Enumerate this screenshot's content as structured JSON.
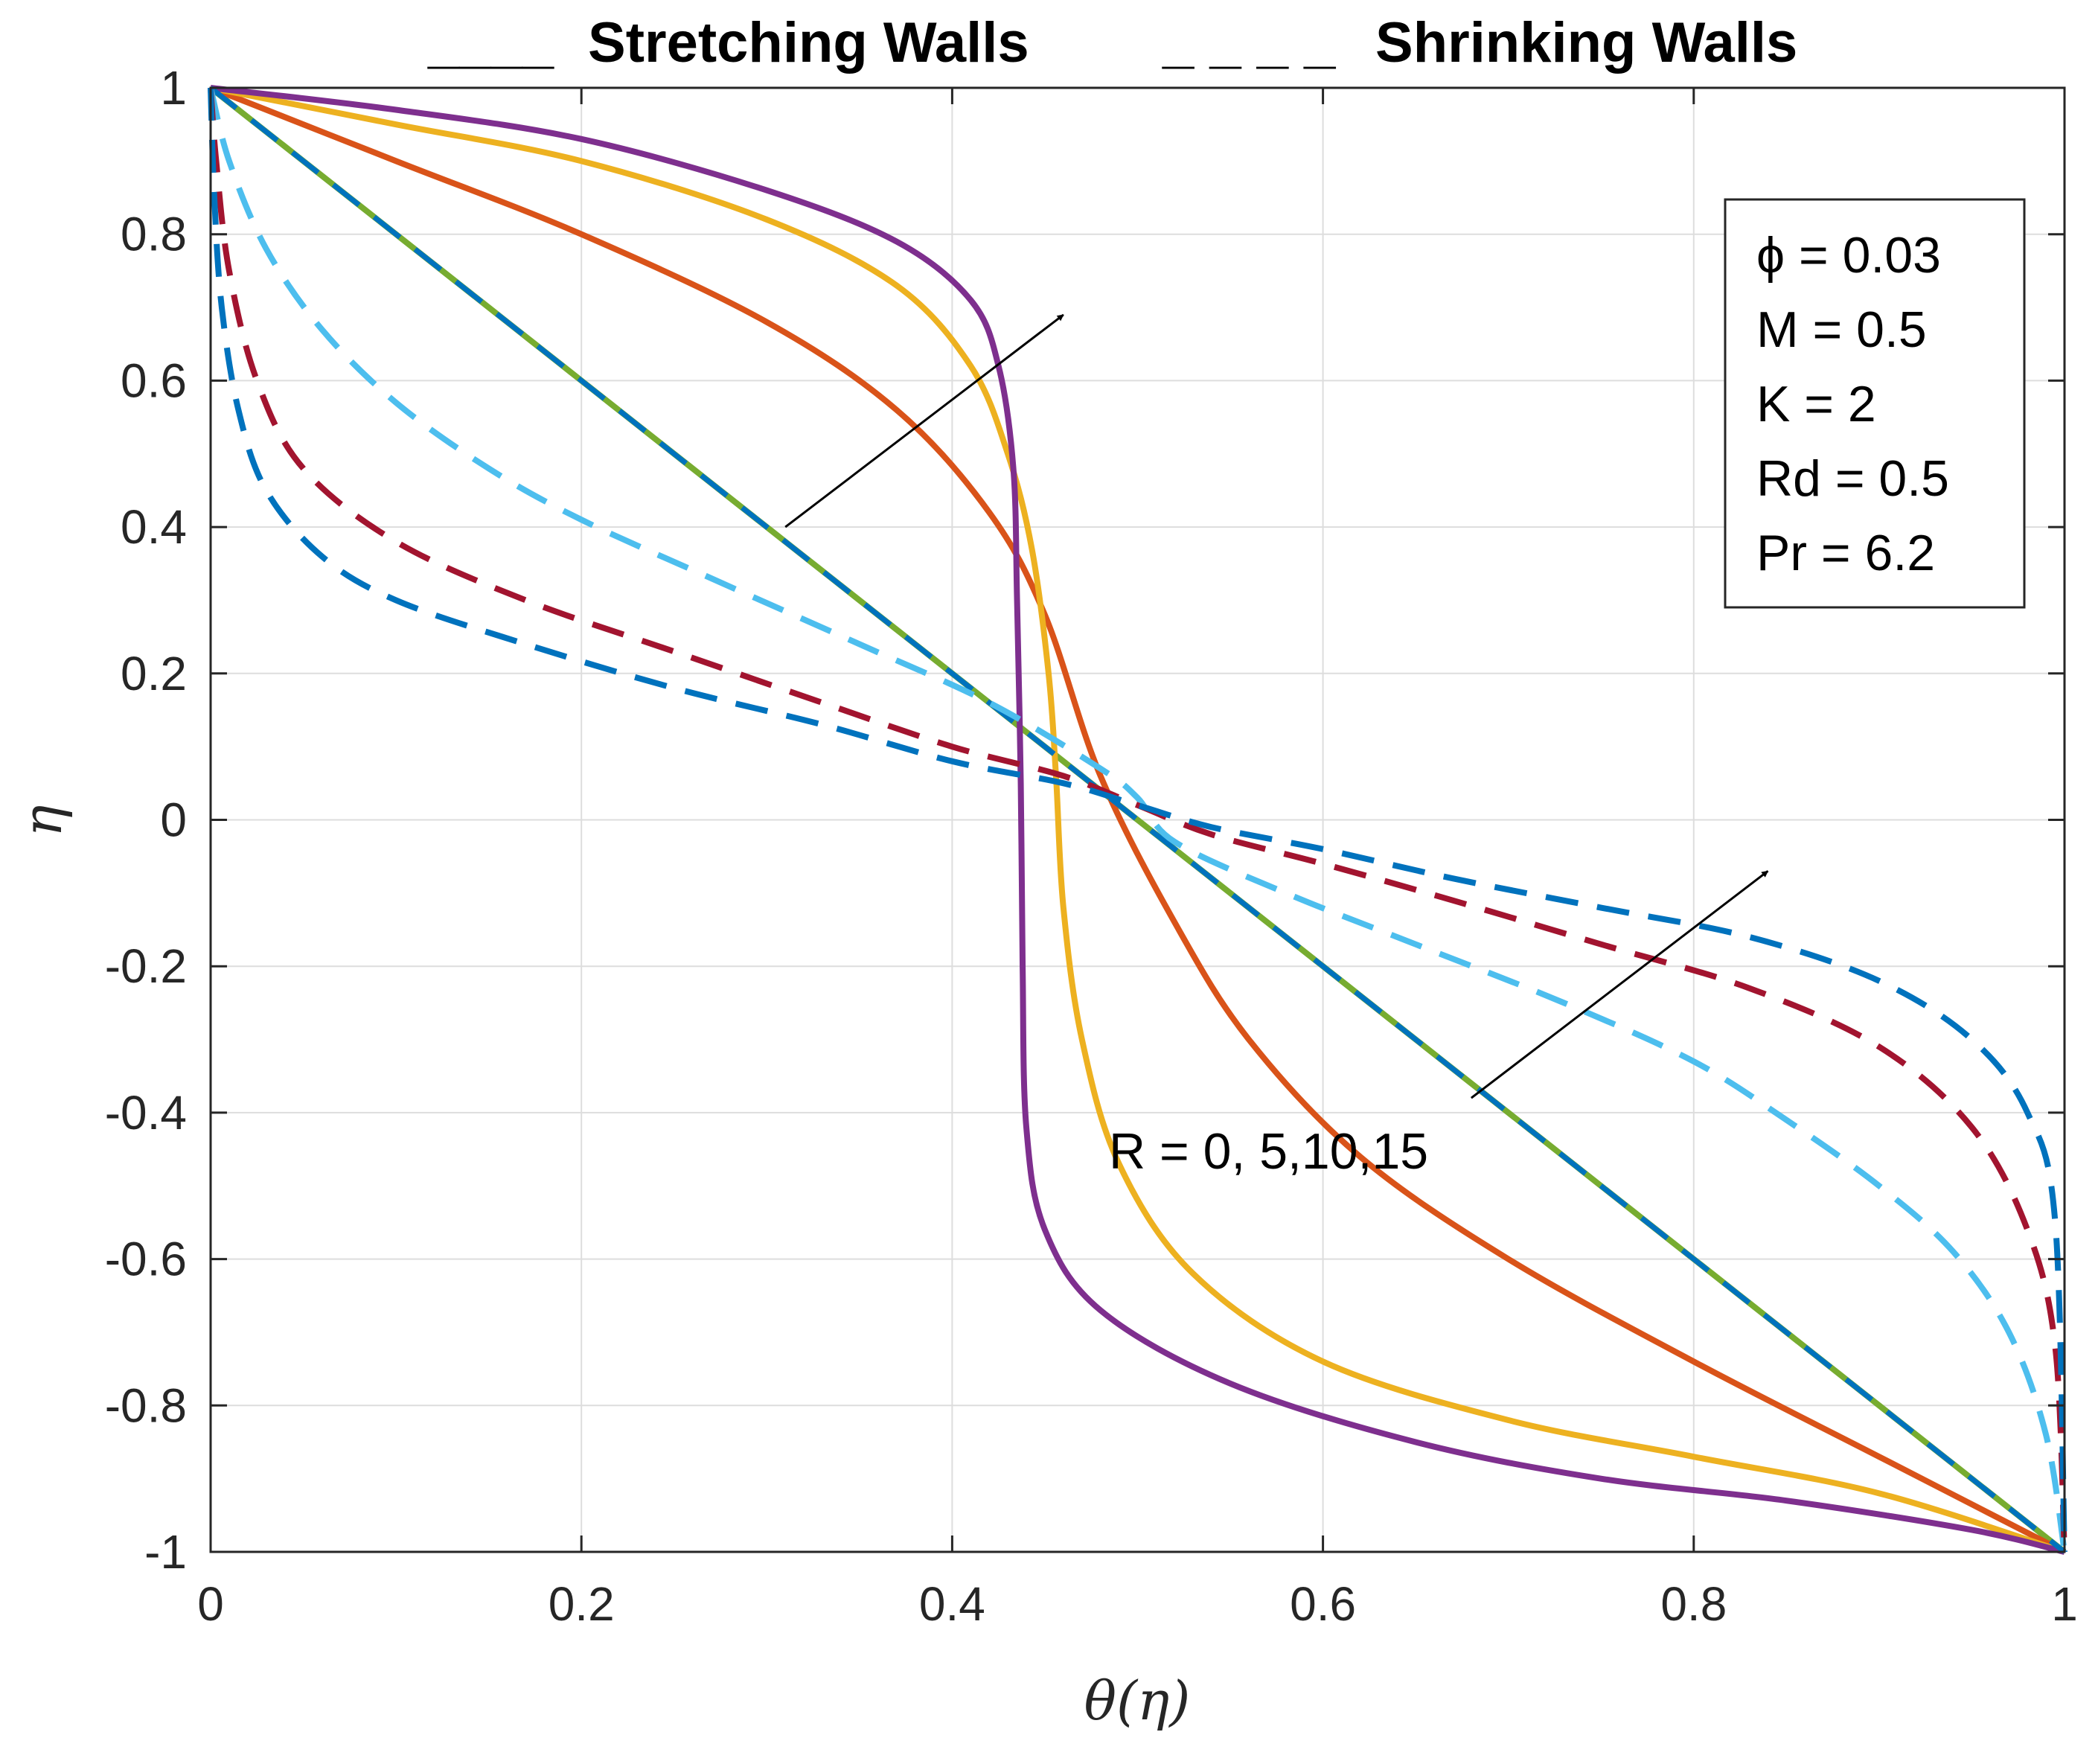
{
  "chart_data": {
    "type": "line",
    "title": "",
    "xlabel": "θ(η)",
    "ylabel": "η",
    "xlim": [
      0,
      1
    ],
    "ylim": [
      -1,
      1
    ],
    "grid": true,
    "xticks": [
      "0",
      "0.2",
      "0.4",
      "0.6",
      "0.8",
      "1"
    ],
    "yticks": [
      "-1",
      "-0.8",
      "-0.6",
      "-0.4",
      "-0.2",
      "0",
      "0.2",
      "0.4",
      "0.6",
      "0.8",
      "1"
    ],
    "legend": {
      "stretching": {
        "marker": "____",
        "label": "Stretching Walls"
      },
      "shrinking": {
        "marker": "_ _ _ _",
        "label": "Shrinking Walls"
      }
    },
    "params_box": {
      "phi": "ϕ = 0.03",
      "M": "M = 0.5",
      "K": "K = 2",
      "Rd": "Rd = 0.5",
      "Pr": "Pr = 6.2"
    },
    "annotation": "R = 0, 5,10,15",
    "series": [
      {
        "name": "Stretching R=0",
        "style": "solid",
        "color": "#77AC30",
        "points": [
          [
            0,
            1
          ],
          [
            1,
            -1
          ]
        ]
      },
      {
        "name": "Stretching R=5",
        "style": "solid",
        "color": "#D95319",
        "points": [
          [
            0,
            1
          ],
          [
            0.1,
            0.9
          ],
          [
            0.2,
            0.8
          ],
          [
            0.3,
            0.68
          ],
          [
            0.37,
            0.56
          ],
          [
            0.42,
            0.42
          ],
          [
            0.45,
            0.28
          ],
          [
            0.48,
            0.06
          ],
          [
            0.52,
            -0.14
          ],
          [
            0.56,
            -0.3
          ],
          [
            0.62,
            -0.46
          ],
          [
            0.7,
            -0.6
          ],
          [
            0.8,
            -0.74
          ],
          [
            0.9,
            -0.87
          ],
          [
            1,
            -1
          ]
        ]
      },
      {
        "name": "Stretching R=10",
        "style": "solid",
        "color": "#EDB120",
        "points": [
          [
            0,
            1
          ],
          [
            0.1,
            0.95
          ],
          [
            0.2,
            0.9
          ],
          [
            0.3,
            0.82
          ],
          [
            0.37,
            0.73
          ],
          [
            0.41,
            0.62
          ],
          [
            0.43,
            0.5
          ],
          [
            0.443,
            0.37
          ],
          [
            0.452,
            0.2
          ],
          [
            0.456,
            0.06
          ],
          [
            0.46,
            -0.12
          ],
          [
            0.47,
            -0.3
          ],
          [
            0.49,
            -0.47
          ],
          [
            0.53,
            -0.62
          ],
          [
            0.6,
            -0.74
          ],
          [
            0.7,
            -0.82
          ],
          [
            0.8,
            -0.87
          ],
          [
            0.9,
            -0.92
          ],
          [
            1,
            -1
          ]
        ]
      },
      {
        "name": "Stretching R=15",
        "style": "solid",
        "color": "#7E2F8E",
        "points": [
          [
            0,
            1
          ],
          [
            0.1,
            0.97
          ],
          [
            0.2,
            0.93
          ],
          [
            0.3,
            0.86
          ],
          [
            0.37,
            0.79
          ],
          [
            0.41,
            0.71
          ],
          [
            0.425,
            0.62
          ],
          [
            0.433,
            0.48
          ],
          [
            0.435,
            0.3
          ],
          [
            0.437,
            0.05
          ],
          [
            0.438,
            -0.2
          ],
          [
            0.44,
            -0.42
          ],
          [
            0.45,
            -0.56
          ],
          [
            0.48,
            -0.67
          ],
          [
            0.55,
            -0.77
          ],
          [
            0.65,
            -0.85
          ],
          [
            0.75,
            -0.9
          ],
          [
            0.85,
            -0.93
          ],
          [
            0.95,
            -0.97
          ],
          [
            1,
            -1
          ]
        ]
      },
      {
        "name": "Shrinking R=0",
        "style": "solid",
        "color": "#0072BD",
        "points": [
          [
            0,
            1
          ],
          [
            1,
            -1
          ]
        ]
      },
      {
        "name": "Shrinking R=5",
        "style": "dashed",
        "color": "#4DBEEE",
        "points": [
          [
            0,
            1
          ],
          [
            0.01,
            0.9
          ],
          [
            0.03,
            0.78
          ],
          [
            0.06,
            0.67
          ],
          [
            0.1,
            0.57
          ],
          [
            0.15,
            0.48
          ],
          [
            0.2,
            0.41
          ],
          [
            0.27,
            0.33
          ],
          [
            0.35,
            0.24
          ],
          [
            0.42,
            0.16
          ],
          [
            0.48,
            0.07
          ],
          [
            0.5,
            0.03
          ],
          [
            0.52,
            -0.03
          ],
          [
            0.58,
            -0.1
          ],
          [
            0.65,
            -0.17
          ],
          [
            0.73,
            -0.25
          ],
          [
            0.8,
            -0.33
          ],
          [
            0.85,
            -0.41
          ],
          [
            0.9,
            -0.5
          ],
          [
            0.94,
            -0.59
          ],
          [
            0.97,
            -0.7
          ],
          [
            0.99,
            -0.84
          ],
          [
            1,
            -1
          ]
        ]
      },
      {
        "name": "Shrinking R=10",
        "style": "dashed",
        "color": "#A2142F",
        "points": [
          [
            0,
            1
          ],
          [
            0.003,
            0.9
          ],
          [
            0.01,
            0.75
          ],
          [
            0.025,
            0.6
          ],
          [
            0.05,
            0.48
          ],
          [
            0.1,
            0.38
          ],
          [
            0.17,
            0.3
          ],
          [
            0.25,
            0.23
          ],
          [
            0.33,
            0.16
          ],
          [
            0.4,
            0.1
          ],
          [
            0.46,
            0.06
          ],
          [
            0.5,
            0.02
          ],
          [
            0.54,
            -0.02
          ],
          [
            0.6,
            -0.06
          ],
          [
            0.67,
            -0.11
          ],
          [
            0.75,
            -0.17
          ],
          [
            0.83,
            -0.23
          ],
          [
            0.9,
            -0.31
          ],
          [
            0.95,
            -0.42
          ],
          [
            0.98,
            -0.56
          ],
          [
            0.995,
            -0.72
          ],
          [
            1,
            -1
          ]
        ]
      },
      {
        "name": "Shrinking R=15",
        "style": "dashed",
        "color": "#0072BD",
        "points": [
          [
            0,
            1
          ],
          [
            0.002,
            0.85
          ],
          [
            0.006,
            0.7
          ],
          [
            0.015,
            0.56
          ],
          [
            0.03,
            0.45
          ],
          [
            0.06,
            0.36
          ],
          [
            0.1,
            0.3
          ],
          [
            0.17,
            0.24
          ],
          [
            0.25,
            0.18
          ],
          [
            0.33,
            0.13
          ],
          [
            0.4,
            0.08
          ],
          [
            0.46,
            0.05
          ],
          [
            0.5,
            0.02
          ],
          [
            0.54,
            -0.01
          ],
          [
            0.6,
            -0.04
          ],
          [
            0.67,
            -0.08
          ],
          [
            0.75,
            -0.12
          ],
          [
            0.83,
            -0.16
          ],
          [
            0.9,
            -0.22
          ],
          [
            0.95,
            -0.3
          ],
          [
            0.98,
            -0.4
          ],
          [
            0.995,
            -0.55
          ],
          [
            1,
            -1
          ]
        ]
      }
    ],
    "arrows": [
      {
        "from": [
          0.31,
          0.4
        ],
        "to": [
          0.46,
          0.69
        ]
      },
      {
        "from": [
          0.68,
          -0.38
        ],
        "to": [
          0.84,
          -0.07
        ]
      }
    ]
  }
}
